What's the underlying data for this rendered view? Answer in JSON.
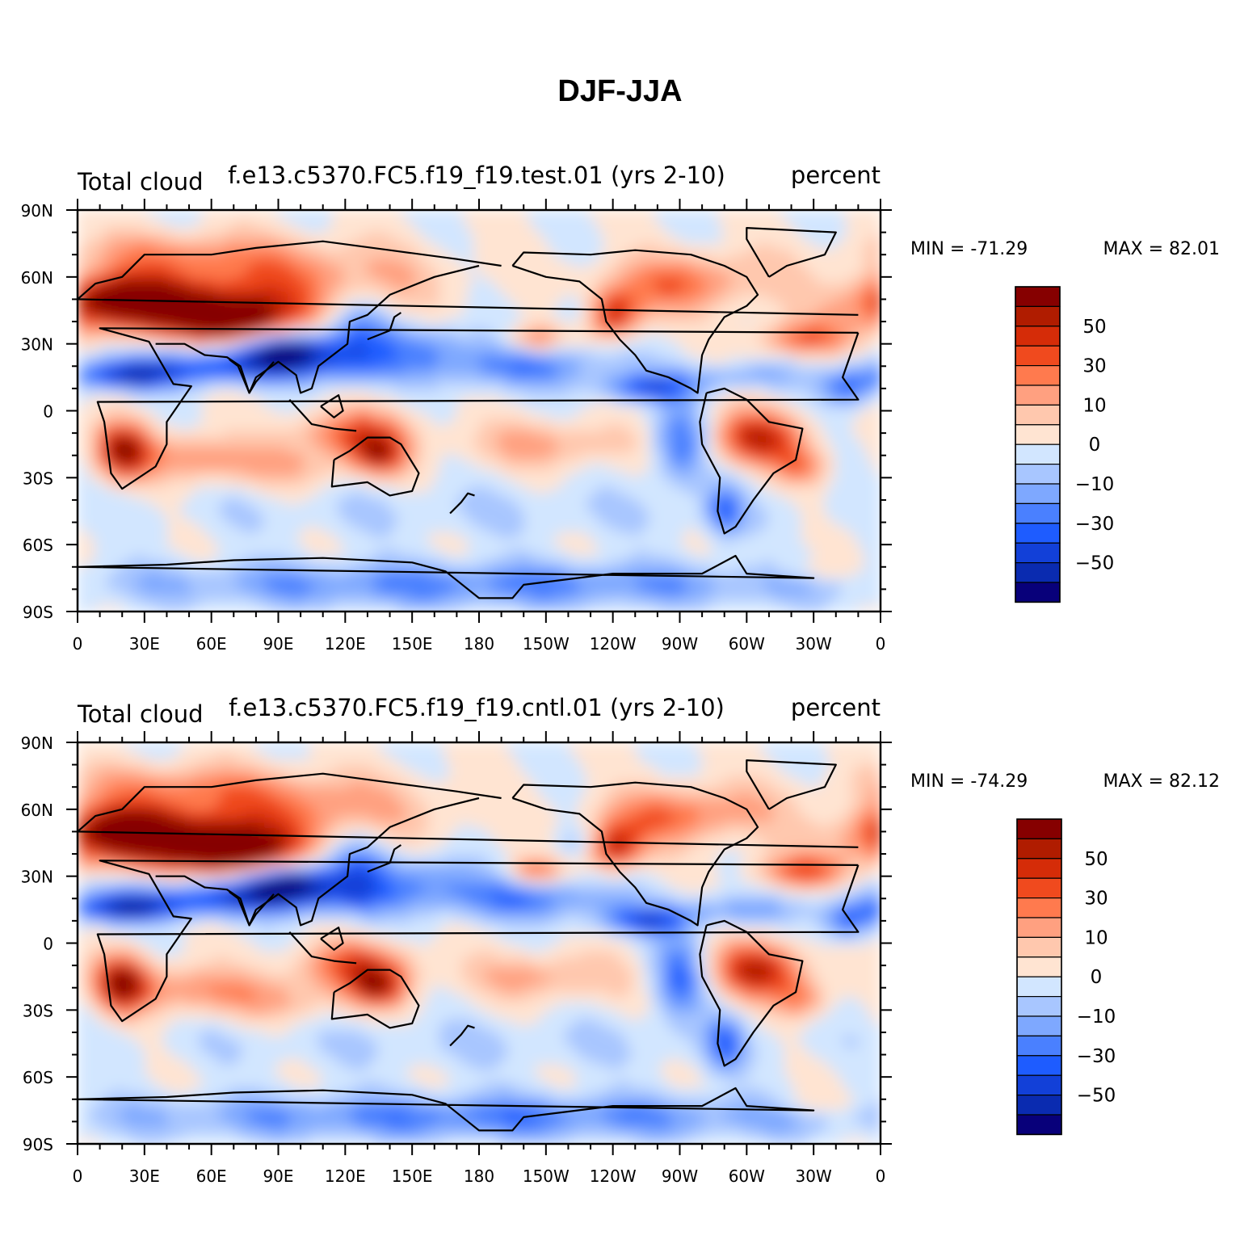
{
  "figure_title": "DJF-JJA",
  "colorbar": {
    "colors": [
      "#08007a",
      "#0a2bb0",
      "#1240d8",
      "#1e5cff",
      "#4a80ff",
      "#7ea8ff",
      "#a8c6ff",
      "#d2e6ff",
      "#ffe4d2",
      "#ffc8ae",
      "#ffa080",
      "#ff7a4e",
      "#f04a1e",
      "#d52c08",
      "#b01c00",
      "#860000"
    ],
    "labels": [
      "-50",
      "-30",
      "-10",
      "0",
      "10",
      "30",
      "50"
    ]
  },
  "axes": {
    "lat_labels": [
      "90N",
      "60N",
      "30N",
      "0",
      "30S",
      "60S",
      "90S"
    ],
    "lon_labels": [
      "0",
      "30E",
      "60E",
      "90E",
      "120E",
      "150E",
      "180",
      "150W",
      "120W",
      "90W",
      "60W",
      "30W",
      "0"
    ]
  },
  "panels": [
    {
      "left_title": "Total cloud",
      "center_title": "f.e13.c5370.FC5.f19_f19.test.01 (yrs 2-10)",
      "units": "percent",
      "min_label": "MIN = -71.29",
      "max_label": "MAX =  82.01",
      "min": -71.29,
      "max": 82.01
    },
    {
      "left_title": "Total cloud",
      "center_title": "f.e13.c5370.FC5.f19_f19.cntl.01 (yrs 2-10)",
      "units": "percent",
      "min_label": "MIN = -74.29",
      "max_label": "MAX =  82.12",
      "min": -74.29,
      "max": 82.12
    }
  ]
}
